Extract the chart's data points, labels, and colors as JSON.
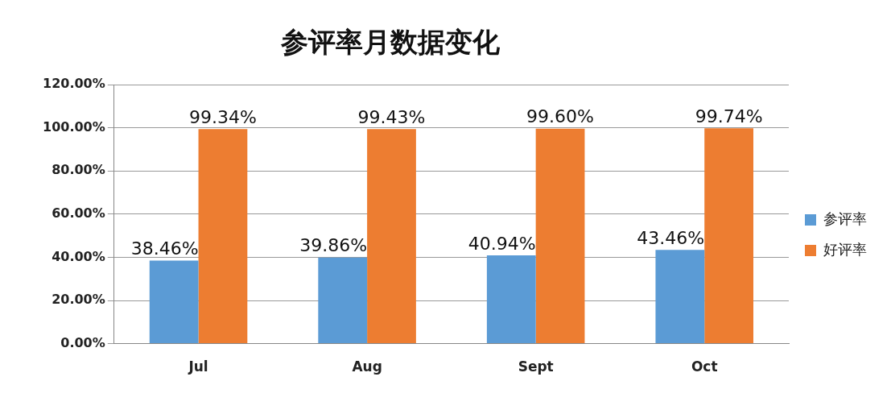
{
  "chart_data": {
    "type": "bar",
    "title": "参评率月数据变化",
    "categories": [
      "Jul",
      "Aug",
      "Sept",
      "Oct"
    ],
    "series": [
      {
        "name": "参评率",
        "color": "#5b9bd5",
        "values": [
          38.46,
          39.86,
          40.94,
          43.46
        ],
        "value_labels": [
          "38.46%",
          "39.86%",
          "40.94%",
          "43.46%"
        ]
      },
      {
        "name": "好评率",
        "color": "#ed7d31",
        "values": [
          99.34,
          99.43,
          99.6,
          99.74
        ],
        "value_labels": [
          "99.34%",
          "99.43%",
          "99.60%",
          "99.74%"
        ]
      }
    ],
    "ylim": [
      0,
      120
    ],
    "yticks": [
      {
        "value": 0,
        "label": "0.00%"
      },
      {
        "value": 20,
        "label": "20.00%"
      },
      {
        "value": 40,
        "label": "40.00%"
      },
      {
        "value": 60,
        "label": "60.00%"
      },
      {
        "value": 80,
        "label": "80.00%"
      },
      {
        "value": 100,
        "label": "100.00%"
      },
      {
        "value": 120,
        "label": "120.00%"
      }
    ],
    "grid": "y",
    "legend": "right"
  }
}
